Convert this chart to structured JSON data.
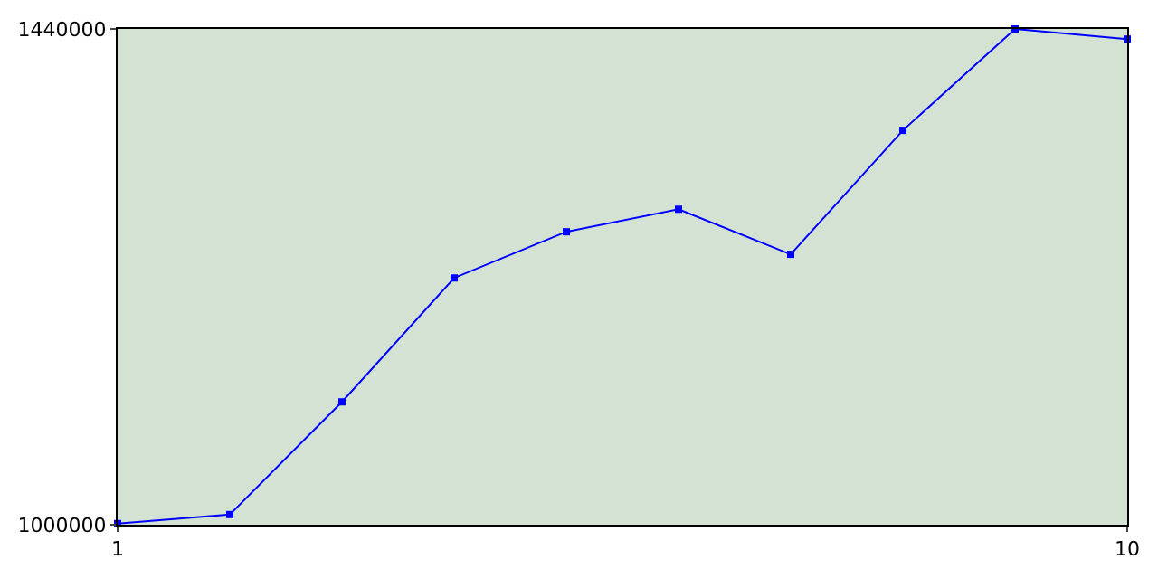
{
  "chart_data": {
    "type": "line",
    "x": [
      1,
      2,
      3,
      4,
      5,
      6,
      7,
      8,
      9,
      10
    ],
    "series": [
      {
        "color": "#0000ff",
        "values": [
          1001000,
          1009000,
          1109000,
          1219000,
          1260000,
          1280000,
          1240000,
          1350000,
          1440000,
          1431000
        ]
      }
    ],
    "xlim": [
      1,
      10
    ],
    "xticks": [
      1,
      10
    ],
    "ylim": [
      1000000,
      1440000
    ],
    "yticks": [
      1000000,
      1440000
    ],
    "marker": "square",
    "line_style": "solid"
  }
}
